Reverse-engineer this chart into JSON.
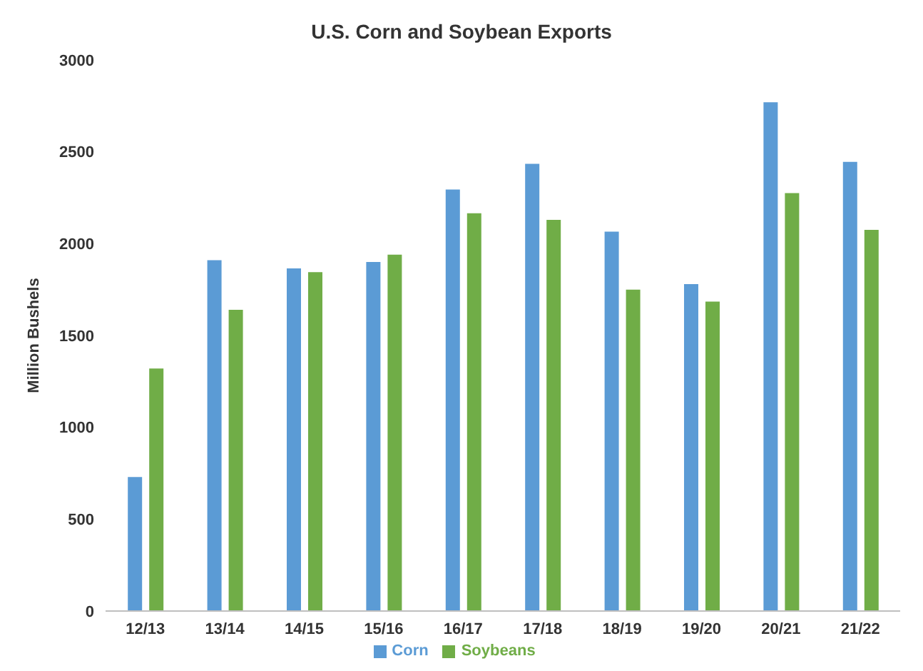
{
  "chart_data": {
    "type": "bar",
    "title": "U.S. Corn and Soybean Exports",
    "ylabel": "Million Bushels",
    "categories": [
      "12/13",
      "13/14",
      "14/15",
      "15/16",
      "16/17",
      "17/18",
      "18/19",
      "19/20",
      "20/21",
      "21/22"
    ],
    "series": [
      {
        "name": "Corn",
        "color": "#5b9bd5",
        "values": [
          730,
          1910,
          1865,
          1900,
          2295,
          2435,
          2065,
          1780,
          2770,
          2445
        ]
      },
      {
        "name": "Soybeans",
        "color": "#70ad47",
        "values": [
          1320,
          1640,
          1845,
          1940,
          2165,
          2130,
          1750,
          1685,
          2275,
          2075
        ]
      }
    ],
    "ylim": [
      0,
      3000
    ],
    "yticks": [
      0,
      500,
      1000,
      1500,
      2000,
      2500,
      3000
    ],
    "grid": false,
    "legend": "bottom"
  }
}
